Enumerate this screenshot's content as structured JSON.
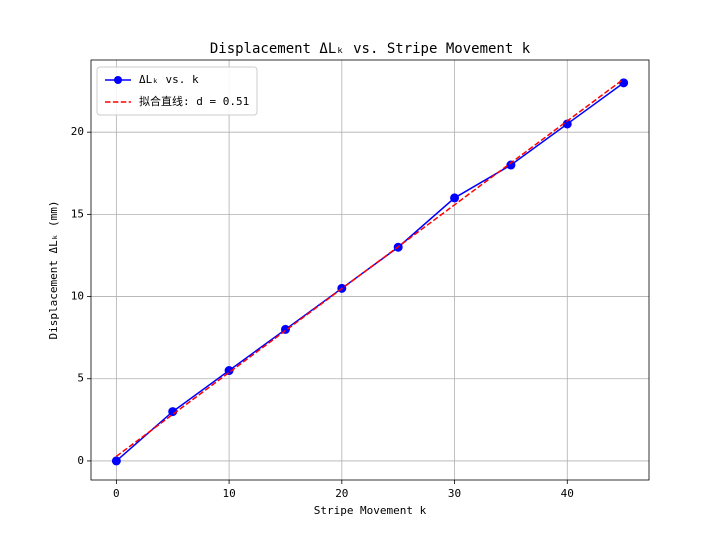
{
  "chart_data": {
    "type": "line",
    "title": "Displacement ΔLₖ vs. Stripe Movement k",
    "x_label": "Stripe Movement k",
    "y_label": "Displacement ΔLₖ (mm)",
    "x": [
      0,
      5,
      10,
      15,
      20,
      25,
      30,
      35,
      40,
      45
    ],
    "series": [
      {
        "name": "ΔLₖ vs. k",
        "color": "#0000ff",
        "style": "solid",
        "marker": true,
        "values": [
          0,
          3,
          5.5,
          8,
          10.5,
          13,
          16,
          18,
          20.5,
          23
        ]
      },
      {
        "name": "拟合直线: d = 0.51",
        "color": "#ff0000",
        "style": "dashed",
        "marker": false,
        "values": [
          0.28,
          2.83,
          5.38,
          7.93,
          10.48,
          13.03,
          15.58,
          18.13,
          20.68,
          23.23
        ]
      }
    ],
    "xlim": [
      -2.25,
      47.25
    ],
    "xticks": [
      0,
      10,
      20,
      30,
      40
    ],
    "ylim": [
      -1.16,
      24.39
    ],
    "yticks": [
      0,
      5,
      10,
      15,
      20
    ],
    "grid": true,
    "legend": "upper left"
  }
}
